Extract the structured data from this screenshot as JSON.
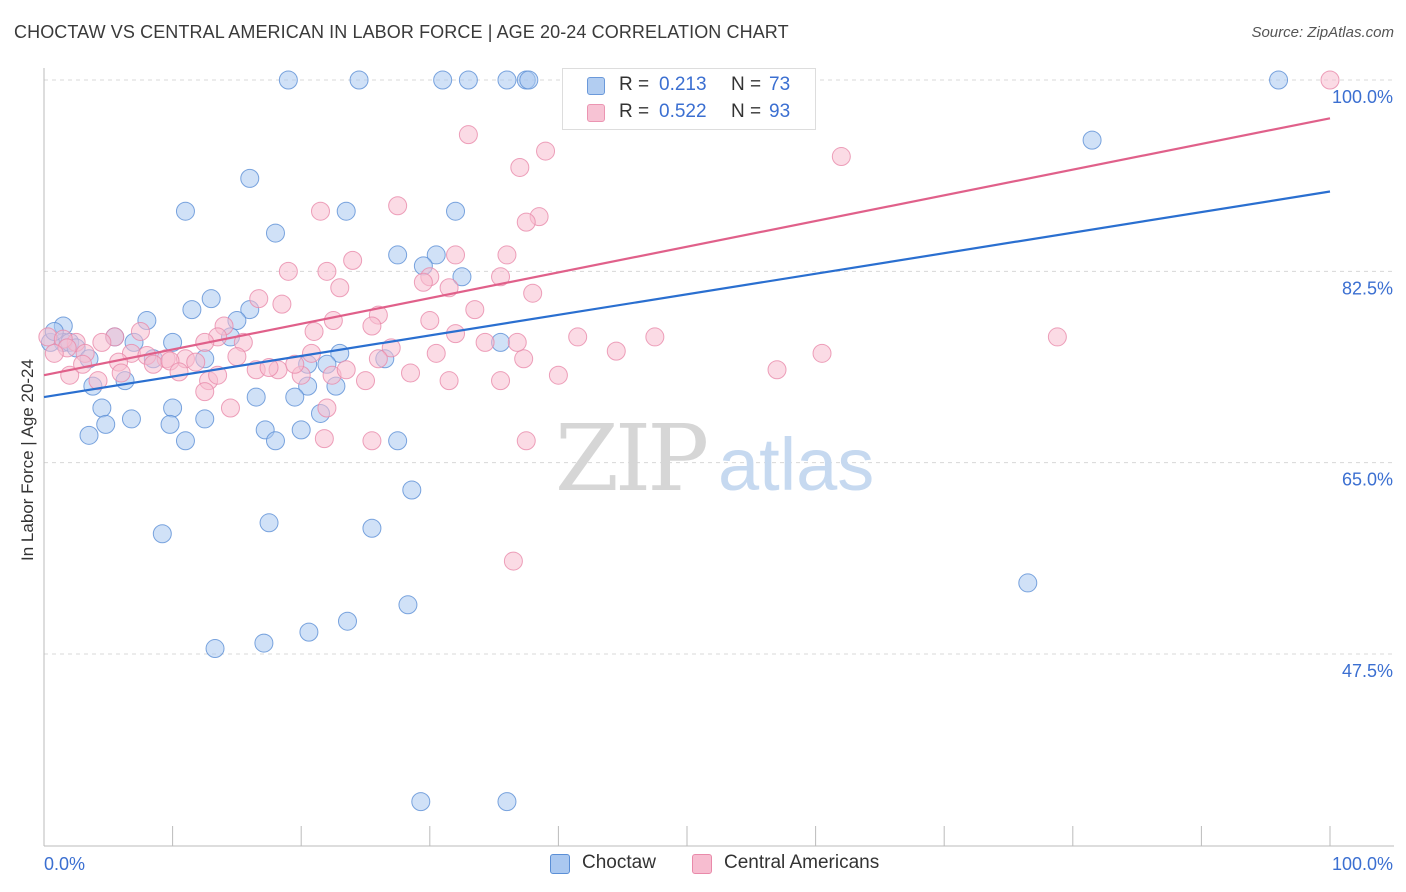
{
  "title": "CHOCTAW VS CENTRAL AMERICAN IN LABOR FORCE | AGE 20-24 CORRELATION CHART",
  "source": "Source: ZipAtlas.com",
  "watermark": {
    "zip": "ZIP",
    "atlas": "atlas"
  },
  "legend": {
    "rows": [
      {
        "r_label": "R =",
        "r_value": "0.213",
        "n_label": "N =",
        "n_value": "73"
      },
      {
        "r_label": "R =",
        "r_value": "0.522",
        "n_label": "N =",
        "n_value": "93"
      }
    ]
  },
  "bottom_legend": {
    "choctaw": "Choctaw",
    "central": "Central Americans"
  },
  "colors": {
    "choctaw_fill": "#aac8f0",
    "choctaw_stroke": "#5b8fd6",
    "choctaw_line": "#2a6fd0",
    "central_fill": "#f7bdd0",
    "central_stroke": "#e98aaa",
    "central_line": "#e0608a",
    "tick_label": "#3b6fd1",
    "grid": "#d8d8d8"
  },
  "chart_data": {
    "type": "scatter",
    "title": "CHOCTAW VS CENTRAL AMERICAN IN LABOR FORCE | AGE 20-24 CORRELATION CHART",
    "xlabel": "",
    "ylabel": "In Labor Force | Age 20-24",
    "xlim": [
      0,
      100
    ],
    "ylim": [
      30,
      103
    ],
    "x_tick_labels": [
      "0.0%",
      "100.0%"
    ],
    "y_ticks": [
      {
        "value": 47.5,
        "label": "47.5%"
      },
      {
        "value": 65.0,
        "label": "65.0%"
      },
      {
        "value": 82.5,
        "label": "82.5%"
      },
      {
        "value": 100.0,
        "label": "100.0%"
      }
    ],
    "grid": true,
    "legend_position": "top-center",
    "series": [
      {
        "name": "Choctaw",
        "r": 0.213,
        "n": 73,
        "trend": {
          "x": [
            0,
            100
          ],
          "y": [
            71.0,
            89.8
          ]
        },
        "points": [
          [
            19,
            100
          ],
          [
            24.5,
            100
          ],
          [
            31,
            100
          ],
          [
            33,
            100
          ],
          [
            36,
            100
          ],
          [
            37.5,
            100
          ],
          [
            37.7,
            100
          ],
          [
            96,
            100
          ],
          [
            16,
            91
          ],
          [
            81.5,
            94.5
          ],
          [
            11,
            88
          ],
          [
            23.5,
            88
          ],
          [
            32,
            88
          ],
          [
            18,
            86
          ],
          [
            27.5,
            84
          ],
          [
            30.5,
            84
          ],
          [
            29.5,
            83
          ],
          [
            32.5,
            82
          ],
          [
            13,
            80
          ],
          [
            11.5,
            79
          ],
          [
            16,
            79
          ],
          [
            15,
            78
          ],
          [
            8,
            78
          ],
          [
            1.5,
            77.5
          ],
          [
            1.5,
            76
          ],
          [
            2,
            76
          ],
          [
            0.5,
            76
          ],
          [
            2.5,
            75.5
          ],
          [
            7,
            76
          ],
          [
            14.5,
            76.5
          ],
          [
            10,
            76
          ],
          [
            23,
            75
          ],
          [
            3.5,
            74.5
          ],
          [
            8.5,
            74.5
          ],
          [
            12.5,
            74.5
          ],
          [
            26.5,
            74.5
          ],
          [
            22,
            74
          ],
          [
            20.5,
            74
          ],
          [
            35.5,
            76
          ],
          [
            6.3,
            72.5
          ],
          [
            3.8,
            72
          ],
          [
            20.5,
            72
          ],
          [
            22.7,
            72
          ],
          [
            16.5,
            71
          ],
          [
            19.5,
            71
          ],
          [
            4.5,
            70
          ],
          [
            10,
            70
          ],
          [
            21.5,
            69.5
          ],
          [
            6.8,
            69
          ],
          [
            9.8,
            68.5
          ],
          [
            4.8,
            68.5
          ],
          [
            12.5,
            69
          ],
          [
            17.2,
            68
          ],
          [
            20,
            68
          ],
          [
            3.5,
            67.5
          ],
          [
            11,
            67
          ],
          [
            18,
            67
          ],
          [
            27.5,
            67
          ],
          [
            28.6,
            62.5
          ],
          [
            17.5,
            59.5
          ],
          [
            25.5,
            59
          ],
          [
            9.2,
            58.5
          ],
          [
            76.5,
            54
          ],
          [
            28.3,
            52
          ],
          [
            23.6,
            50.5
          ],
          [
            20.6,
            49.5
          ],
          [
            17.1,
            48.5
          ],
          [
            13.3,
            48
          ],
          [
            29.3,
            34
          ],
          [
            36,
            34
          ],
          [
            5.5,
            76.5
          ],
          [
            0.8,
            77
          ]
        ]
      },
      {
        "name": "Central Americans",
        "r": 0.522,
        "n": 93,
        "trend": {
          "x": [
            0,
            100
          ],
          "y": [
            73.0,
            96.5
          ]
        },
        "points": [
          [
            55.5,
            100
          ],
          [
            100,
            100
          ],
          [
            41.5,
            98
          ],
          [
            42,
            97.5
          ],
          [
            33,
            95
          ],
          [
            39,
            93.5
          ],
          [
            62,
            93
          ],
          [
            37,
            92
          ],
          [
            27.5,
            88.5
          ],
          [
            21.5,
            88
          ],
          [
            38.5,
            87.5
          ],
          [
            37.5,
            87
          ],
          [
            32,
            84
          ],
          [
            36,
            84
          ],
          [
            24,
            83.5
          ],
          [
            22,
            82.5
          ],
          [
            19,
            82.5
          ],
          [
            30,
            82
          ],
          [
            35.5,
            82
          ],
          [
            29.5,
            81.5
          ],
          [
            23,
            81
          ],
          [
            31.5,
            81
          ],
          [
            38,
            80.5
          ],
          [
            16.7,
            80
          ],
          [
            18.5,
            79.5
          ],
          [
            33.5,
            79
          ],
          [
            26,
            78.5
          ],
          [
            22.5,
            78
          ],
          [
            14,
            77.5
          ],
          [
            30,
            78
          ],
          [
            25.5,
            77.5
          ],
          [
            21,
            77
          ],
          [
            41.5,
            76.5
          ],
          [
            7.5,
            77
          ],
          [
            5.5,
            76.5
          ],
          [
            13.5,
            76.5
          ],
          [
            12.5,
            76
          ],
          [
            15.5,
            76
          ],
          [
            4.5,
            76
          ],
          [
            2.5,
            76
          ],
          [
            0.3,
            76.5
          ],
          [
            1.5,
            76.3
          ],
          [
            1.8,
            75.5
          ],
          [
            3.2,
            75
          ],
          [
            6.8,
            75
          ],
          [
            8,
            74.8
          ],
          [
            9.5,
            74.5
          ],
          [
            11,
            74.5
          ],
          [
            11.8,
            74.2
          ],
          [
            16.5,
            73.5
          ],
          [
            18.2,
            73.5
          ],
          [
            5.8,
            74.2
          ],
          [
            2,
            73
          ],
          [
            12.8,
            72.5
          ],
          [
            13.5,
            73
          ],
          [
            20,
            73
          ],
          [
            22.4,
            73
          ],
          [
            25,
            72.5
          ],
          [
            28.5,
            73.2
          ],
          [
            31.5,
            72.5
          ],
          [
            35.5,
            72.5
          ],
          [
            40,
            73
          ],
          [
            34.3,
            76
          ],
          [
            37.3,
            74.5
          ],
          [
            30.5,
            75
          ],
          [
            32,
            76.8
          ],
          [
            36.8,
            76
          ],
          [
            47.5,
            76.5
          ],
          [
            60.5,
            75
          ],
          [
            78.8,
            76.5
          ],
          [
            12.5,
            71.5
          ],
          [
            14.5,
            70
          ],
          [
            22,
            70
          ],
          [
            37.5,
            67
          ],
          [
            25.5,
            67
          ],
          [
            21.8,
            67.2
          ],
          [
            36.5,
            56
          ],
          [
            27,
            75.5
          ],
          [
            20.8,
            75
          ],
          [
            19.5,
            74
          ],
          [
            26,
            74.5
          ],
          [
            23.5,
            73.5
          ],
          [
            8.5,
            74
          ],
          [
            9.8,
            74.3
          ],
          [
            17.5,
            73.7
          ],
          [
            6,
            73.2
          ],
          [
            3,
            74
          ],
          [
            0.8,
            75
          ],
          [
            10.5,
            73.3
          ],
          [
            4.2,
            72.5
          ],
          [
            15,
            74.7
          ],
          [
            44.5,
            75.2
          ],
          [
            57,
            73.5
          ]
        ]
      }
    ]
  }
}
